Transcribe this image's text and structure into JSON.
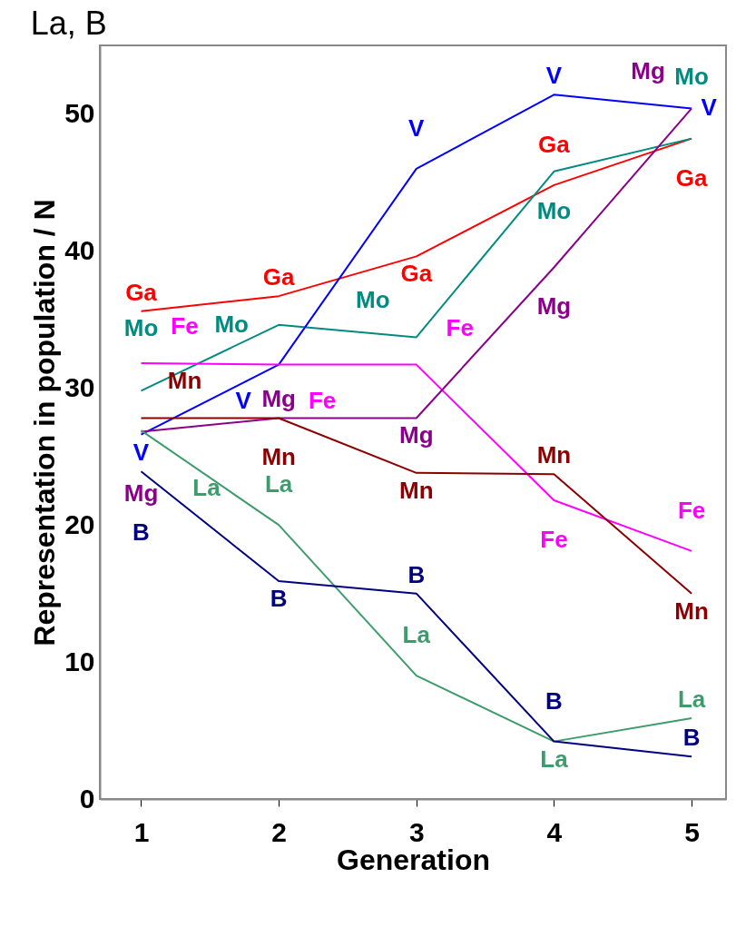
{
  "chart_data": {
    "type": "line",
    "title": "La, B",
    "xlabel": "Generation",
    "ylabel": "Representation in population / N",
    "x": [
      1,
      2,
      3,
      4,
      5
    ],
    "xlim": [
      0.7,
      5.25
    ],
    "xticks": [
      1,
      2,
      3,
      4,
      5
    ],
    "ylim": [
      0,
      55
    ],
    "yticks": [
      0,
      10,
      20,
      30,
      40,
      50
    ],
    "series": [
      {
        "name": "Ga",
        "color": "#ff0000",
        "values": [
          35.6,
          36.7,
          39.6,
          44.8,
          48.2
        ]
      },
      {
        "name": "Mo",
        "color": "#008b80",
        "values": [
          29.8,
          34.6,
          33.7,
          45.8,
          48.2
        ]
      },
      {
        "name": "V",
        "color": "#0000ff",
        "values": [
          26.6,
          31.7,
          46.0,
          51.4,
          50.4
        ]
      },
      {
        "name": "Fe",
        "color": "#ff00ff",
        "values": [
          31.8,
          31.7,
          31.7,
          21.8,
          18.1
        ]
      },
      {
        "name": "Mg",
        "color": "#8b008b",
        "values": [
          26.8,
          27.8,
          27.8,
          38.8,
          50.4
        ]
      },
      {
        "name": "Mn",
        "color": "#8b0000",
        "values": [
          27.8,
          27.8,
          23.8,
          23.7,
          15.0
        ]
      },
      {
        "name": "La",
        "color": "#3c9c6c",
        "values": [
          26.9,
          20.0,
          9.0,
          4.2,
          5.9
        ]
      },
      {
        "name": "B",
        "color": "#000080",
        "values": [
          23.9,
          15.9,
          15.0,
          4.2,
          3.1
        ]
      }
    ]
  }
}
